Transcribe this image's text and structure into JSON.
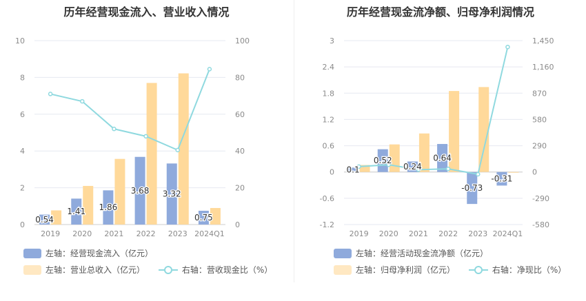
{
  "colors": {
    "blue_bar": "#8faadc",
    "orange_bar": "#ffd99a",
    "line": "#8fd9df",
    "grid": "#e6e8f0",
    "axis_text": "#8a8a8a"
  },
  "chart_data": [
    {
      "type": "bar",
      "title": "历年经营现金流入、营业收入情况",
      "categories": [
        "2019",
        "2020",
        "2021",
        "2022",
        "2023",
        "2024Q1"
      ],
      "left_axis": {
        "ticks": [
          "0",
          "2",
          "4",
          "6",
          "8",
          "10"
        ],
        "ylim": [
          0,
          10
        ]
      },
      "right_axis": {
        "ticks": [
          "0",
          "20",
          "40",
          "60",
          "80",
          "100"
        ],
        "ylim": [
          0,
          100
        ]
      },
      "series": [
        {
          "name": "左轴：经营现金流入（亿元）",
          "axis": "left",
          "kind": "bar",
          "values": [
            0.54,
            1.41,
            1.86,
            3.68,
            3.32,
            0.75
          ],
          "labels": [
            "0.54",
            "1.41",
            "1.86",
            "3.68",
            "3.32",
            "0.75"
          ]
        },
        {
          "name": "左轴：营业总收入（亿元）",
          "axis": "left",
          "kind": "bar",
          "values": [
            0.77,
            2.1,
            3.57,
            7.7,
            8.22,
            0.9
          ]
        },
        {
          "name": "右轴：营收现金比（%）",
          "axis": "right",
          "kind": "line",
          "values": [
            71,
            67,
            52,
            48,
            40.5,
            84.5
          ]
        }
      ]
    },
    {
      "type": "bar",
      "title": "历年经营现金流净额、归母净利润情况",
      "categories": [
        "2019",
        "2020",
        "2021",
        "2022",
        "2023",
        "2024Q1"
      ],
      "left_axis": {
        "ticks": [
          "-1.2",
          "-0.6",
          "0",
          "0.6",
          "1.2",
          "1.8",
          "2.4",
          "3"
        ],
        "ylim": [
          -1.2,
          3
        ]
      },
      "right_axis": {
        "ticks": [
          "-580",
          "-290",
          "0",
          "290",
          "580",
          "870",
          "1,160",
          "1,450"
        ],
        "ylim": [
          -580,
          1450
        ]
      },
      "series": [
        {
          "name": "左轴：经营活动现金流净额（亿元）",
          "axis": "left",
          "kind": "bar",
          "values": [
            0.1,
            0.52,
            0.24,
            0.64,
            -0.73,
            -0.31
          ],
          "labels": [
            "0.1",
            "0.52",
            "0.24",
            "0.64",
            "-0.73",
            "-0.31"
          ]
        },
        {
          "name": "左轴：归母净利润（亿元）",
          "axis": "left",
          "kind": "bar",
          "values": [
            0.16,
            0.63,
            0.88,
            1.85,
            1.94,
            -0.01
          ]
        },
        {
          "name": "右轴：净现比（%）",
          "axis": "right",
          "kind": "line",
          "values": [
            60,
            80,
            25,
            35,
            -25,
            1380
          ]
        }
      ]
    }
  ]
}
